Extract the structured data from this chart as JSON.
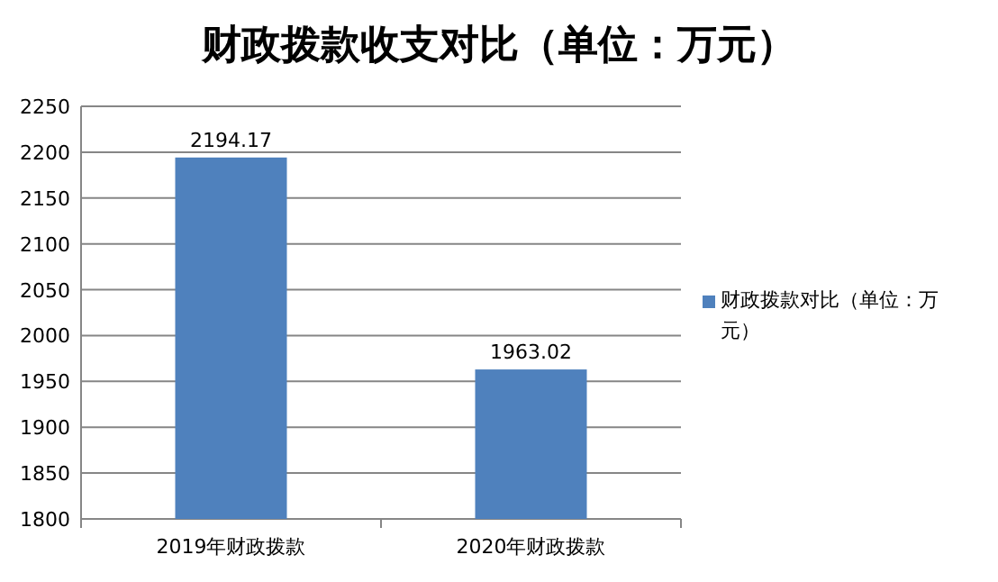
{
  "chart_data": {
    "type": "bar",
    "title": "财政拨款收支对比（单位：万元）",
    "categories": [
      "2019年财政拨款",
      "2020年财政拨款"
    ],
    "series": [
      {
        "name": "财政拨款对比（单位：万元）",
        "color": "#4f81bd",
        "values": [
          2194.17,
          1963.02
        ]
      }
    ],
    "ylim": [
      1800,
      2250
    ],
    "yticks": [
      1800,
      1850,
      1900,
      1950,
      2000,
      2050,
      2100,
      2150,
      2200,
      2250
    ],
    "grid": "y",
    "data_labels": true,
    "legend": "right"
  }
}
